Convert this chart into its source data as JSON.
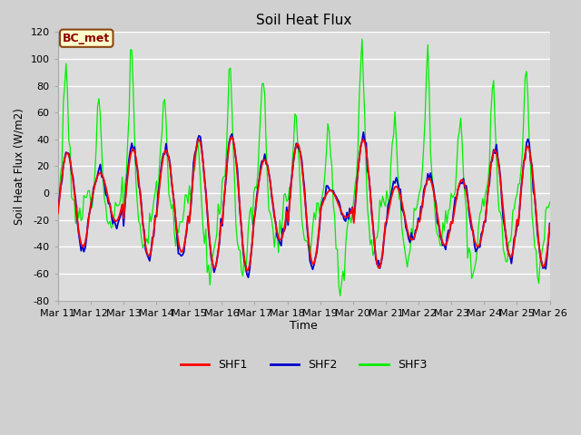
{
  "title": "Soil Heat Flux",
  "xlabel": "Time",
  "ylabel": "Soil Heat Flux (W/m2)",
  "ylim": [
    -80,
    120
  ],
  "xlim": [
    0,
    360
  ],
  "annotation_text": "BC_met",
  "annotation_facecolor": "#ffffcc",
  "annotation_edgecolor": "#8B4513",
  "annotation_textcolor": "#8B0000",
  "shf1_color": "#ff0000",
  "shf2_color": "#0000cc",
  "shf3_color": "#00ee00",
  "fig_facecolor": "#d0d0d0",
  "plot_facecolor": "#dcdcdc",
  "grid_color": "#ffffff",
  "legend_labels": [
    "SHF1",
    "SHF2",
    "SHF3"
  ],
  "xtick_labels": [
    "Mar 11",
    "Mar 12",
    "Mar 13",
    "Mar 14",
    "Mar 15",
    "Mar 16",
    "Mar 17",
    "Mar 18",
    "Mar 19",
    "Mar 20",
    "Mar 21",
    "Mar 22",
    "Mar 23",
    "Mar 24",
    "Mar 25",
    "Mar 26"
  ],
  "ytick_values": [
    -80,
    -60,
    -40,
    -20,
    0,
    20,
    40,
    60,
    80,
    100,
    120
  ]
}
